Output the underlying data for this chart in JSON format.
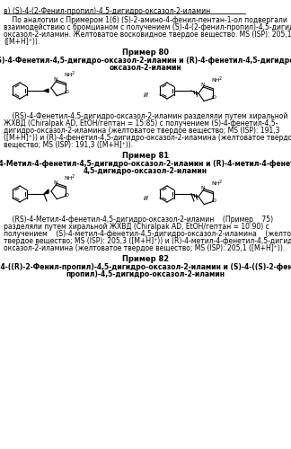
{
  "bg_color": "#ffffff",
  "line1": "в) (S)-4-(2-Фенил-пропил)-4,5-дигидро-оксазол-2-иламин",
  "body1_lines": [
    "    По аналогии с Примером 1(б) (S)-2-амино-4-фенил-пентан-1-ол подвергали",
    "взаимодействию с бромцианом с получением (S)-4-(2-фенил-пропил)-4,5-дигидро-",
    "оксазол-2-иламин. Желтоватое восковидное твердое вещество. MS (ISP): 205,1",
    "([M+H]⁺))."
  ],
  "ex80_header": "Пример 80",
  "ex80_title_lines": [
    "(S)-4-Фенетил-4,5-дигидро-оксазол-2-иламин и (R)-4-фенетил-4,5-дигидро-",
    "оксазол-2-иламин"
  ],
  "ex80_body_lines": [
    "    (RS)-4-Фенетил-4,5-дигидро-оксазол-2-иламин разделяли путем хиральной",
    "ЖХВД (Chiralpak AD, EtOH/гептан = 15:85) с получением (S)-4-фенетил-4,5-",
    "дигидро-оксазол-2-иламина (желтоватое твердое вещество; MS (ISP): 191,3",
    "([M+H]⁺)) и (R)-4-фенетил-4,5-дигидро-оксазол-2-иламина (желтоватое твердое",
    "вещество; MS (ISP): 191,3 ([M+H]⁺))."
  ],
  "ex81_header": "Пример 81",
  "ex81_title_lines": [
    "(S)-4-Метил-4-фенетил-4,5-дигидро-оксазол-2-иламин и (R)-4-метил-4-фенетил-",
    "4,5-дигидро-оксазол-2-иламин"
  ],
  "ex81_body_lines": [
    "    (RS)-4-Метил-4-фенетил-4,5-дигидро-оксазол-2-иламин    (Пример    75)",
    "разделяли путем хиральной ЖХВД (Chiralpak AD, EtOH/гептан = 10:90) с",
    "получением    (S)-4-метил-4-фенетил-4,5-дигидро-оксазол-2-иламина    (желтоватое",
    "твердое вещество; MS (ISP): 205,3 ([M+H]⁺)) и (R)-4-метил-4-фенетил-4,5-дигидро-",
    "оксазол-2-иламина (желтоватое твердое вещество; MS (ISP): 205,1 ([M+H]⁺))."
  ],
  "ex82_header": "Пример 82",
  "ex82_title_lines": [
    "(S)-4-((R)-2-Фенил-пропил)-4,5-дигидро-оксазол-2-иламин и (S)-4-((S)-2-фенил-",
    "пропил)-4,5-дигидро-оксазол-2-иламин"
  ]
}
